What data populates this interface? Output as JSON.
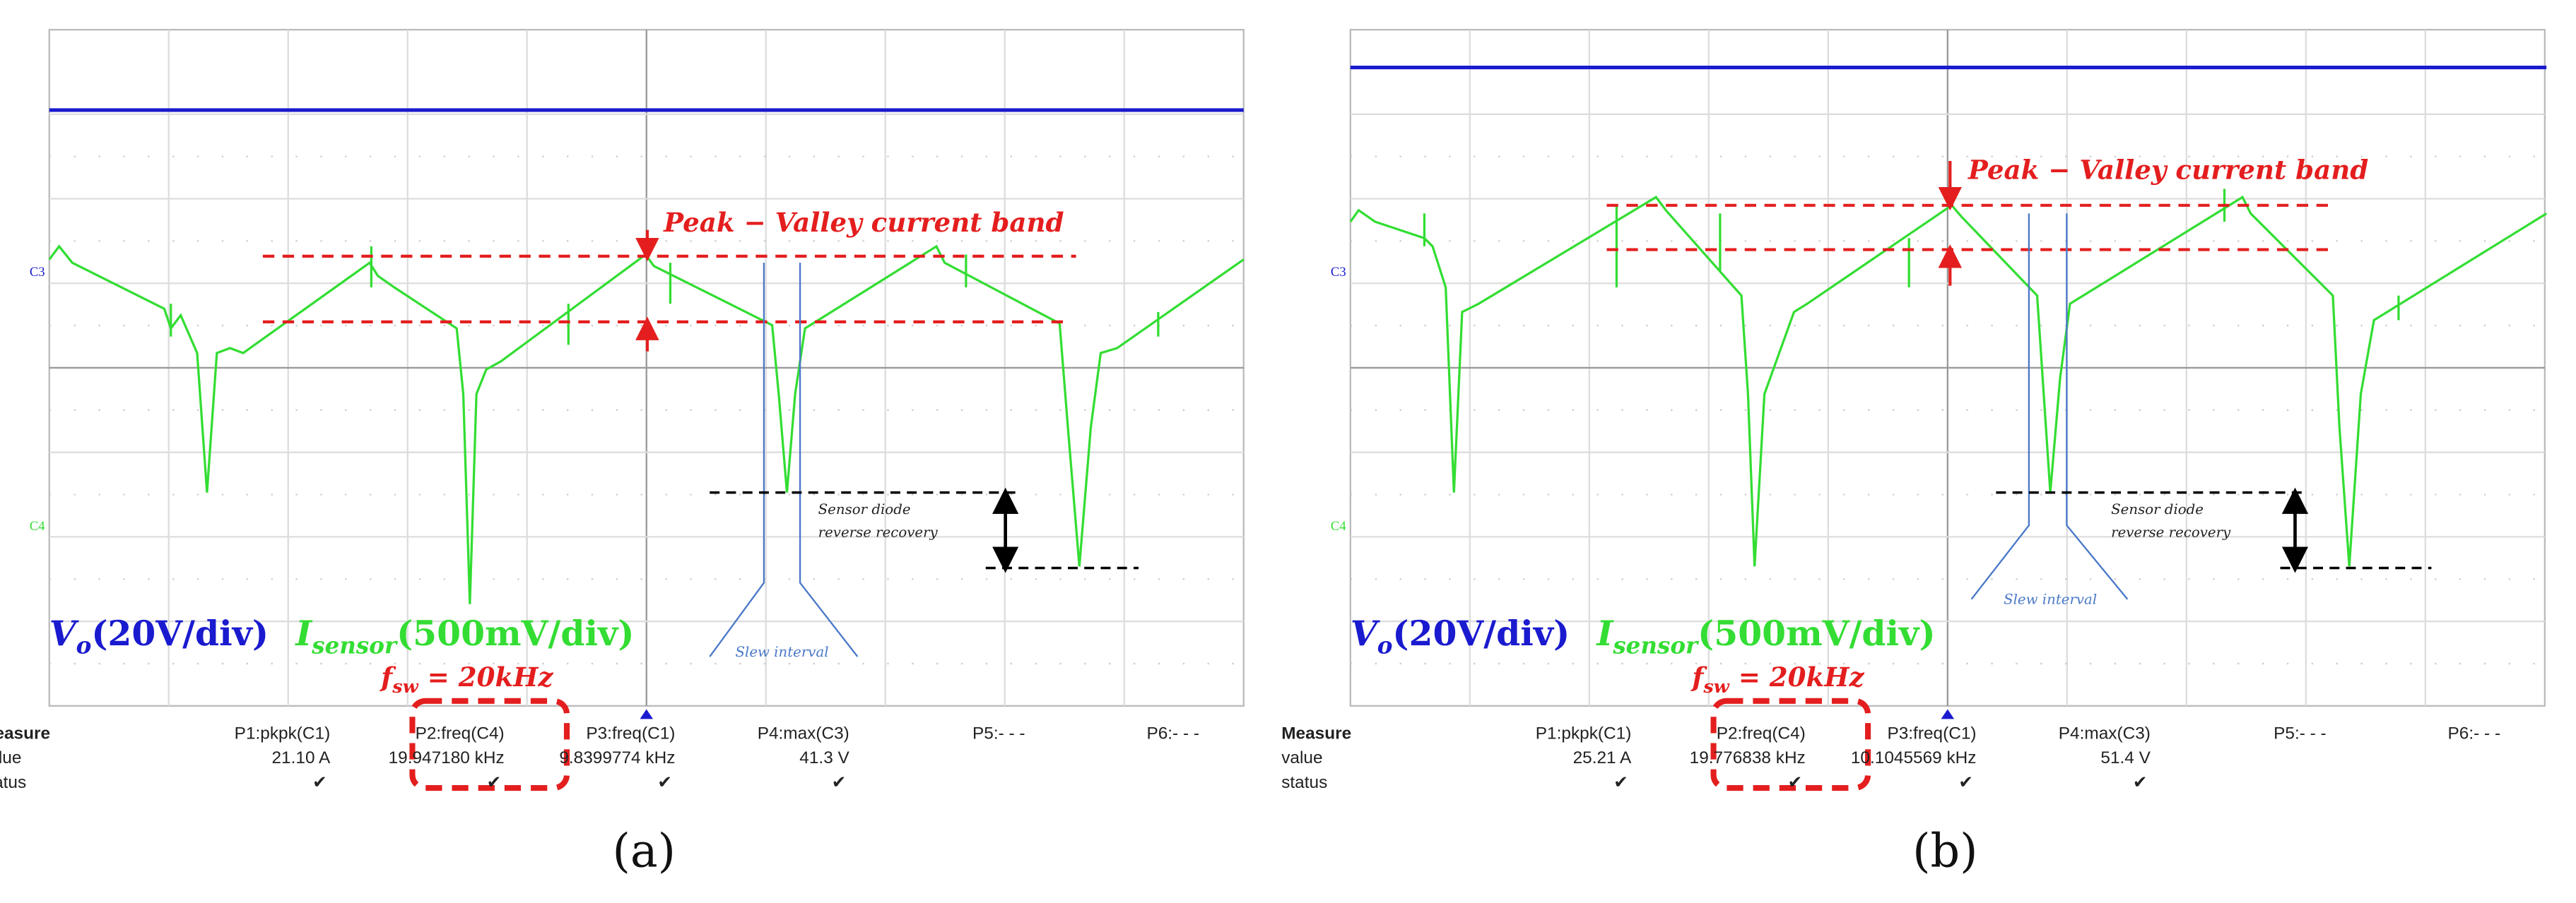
{
  "panels": [
    {
      "caption": "(a)",
      "c3": "C3",
      "c4": "C4",
      "band_label": "Peak − Valley current band",
      "diode_label": [
        "Sensor diode",
        "reverse recovery"
      ],
      "slew_label": "Slew interval",
      "vo": {
        "main": "V",
        "sub": "o",
        "scale": "(20V/div)"
      },
      "isensor": {
        "main": "I",
        "sub": "sensor",
        "scale": "(500mV/div)"
      },
      "fsw": {
        "main": "f",
        "sub": "sw",
        "rest": " = 20kHz"
      },
      "measure": {
        "title": "Measure",
        "row_labels": [
          "value",
          "status"
        ],
        "columns": [
          {
            "header": "P1:pkpk(C1)",
            "value": "21.10 A",
            "status": "✔"
          },
          {
            "header": "P2:freq(C4)",
            "value": "19.947180 kHz",
            "status": "✔"
          },
          {
            "header": "P3:freq(C1)",
            "value": "9.8399774 kHz",
            "status": "✔"
          },
          {
            "header": "P4:max(C3)",
            "value": "41.3 V",
            "status": "✔"
          },
          {
            "header": "P5:- - -"
          },
          {
            "header": "P6:- - -"
          }
        ]
      }
    },
    {
      "caption": "(b)",
      "c3": "C3",
      "c4": "C4",
      "band_label": "Peak − Valley current band",
      "diode_label": [
        "Sensor diode",
        "reverse recovery"
      ],
      "slew_label": "Slew interval",
      "vo": {
        "main": "V",
        "sub": "o",
        "scale": "(20V/div)"
      },
      "isensor": {
        "main": "I",
        "sub": "sensor",
        "scale": "(500mV/div)"
      },
      "fsw": {
        "main": "f",
        "sub": "sw",
        "rest": " = 20kHz"
      },
      "measure": {
        "title": "Measure",
        "row_labels": [
          "value",
          "status"
        ],
        "columns": [
          {
            "header": "P1:pkpk(C1)",
            "value": "25.21 A",
            "status": "✔"
          },
          {
            "header": "P2:freq(C4)",
            "value": "19.776838 kHz",
            "status": "✔"
          },
          {
            "header": "P3:freq(C1)",
            "value": "10.1045569 kHz",
            "status": "✔"
          },
          {
            "header": "P4:max(C3)",
            "value": "51.4 V",
            "status": "✔"
          },
          {
            "header": "P5:- - -"
          },
          {
            "header": "P6:- - -"
          }
        ]
      }
    }
  ]
}
